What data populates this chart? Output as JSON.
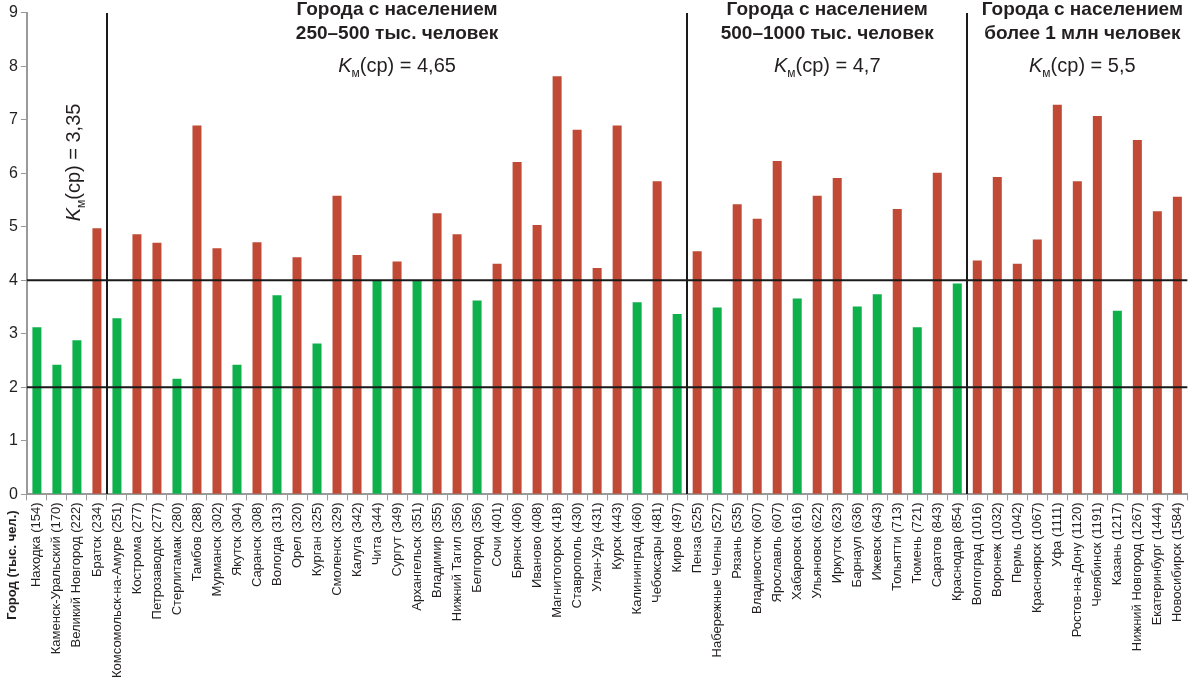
{
  "chart_data": {
    "type": "bar",
    "categories": [
      "Находка (154)",
      "Каменск-Уральский (170)",
      "Великий Новгород (222)",
      "Братск (234)",
      "Комсомольск-на-Амуре (251)",
      "Кострома (277)",
      "Петрозаводск (277)",
      "Стерлитамак (280)",
      "Тамбов (288)",
      "Мурманск (302)",
      "Якутск (304)",
      "Саранск (308)",
      "Вологда (313)",
      "Орел (320)",
      "Курган (325)",
      "Смоленск (329)",
      "Калуга (342)",
      "Чита (344)",
      "Сургут (349)",
      "Архангельск (351)",
      "Владимир (355)",
      "Нижний Тагил (356)",
      "Белгород (356)",
      "Сочи (401)",
      "Брянск (406)",
      "Иваново (408)",
      "Магнитогорск (418)",
      "Ставрополь (430)",
      "Улан-Удэ (431)",
      "Курск (443)",
      "Калининград (460)",
      "Чебоксары (481)",
      "Киров (497)",
      "Пенза (525)",
      "Набережные Челны (527)",
      "Рязань (535)",
      "Владивосток (607)",
      "Ярославль (607)",
      "Хабаровск (616)",
      "Ульяновск (622)",
      "Иркутск (623)",
      "Барнаул (636)",
      "Ижевск (643)",
      "Тольятти (713)",
      "Тюмень (721)",
      "Саратов (843)",
      "Краснодар (854)",
      "Волгоград (1016)",
      "Воронеж (1032)",
      "Пермь (1042)",
      "Красноярск (1067)",
      "Уфа (1111)",
      "Ростов-на-Дону (1120)",
      "Челябинск (1191)",
      "Казань (1217)",
      "Нижний Новгород (1267)",
      "Екатеринбург (1444)",
      "Новосибирск (1584)"
    ],
    "values": [
      3.12,
      2.42,
      2.88,
      4.97,
      3.29,
      4.86,
      4.7,
      2.16,
      6.89,
      4.6,
      2.42,
      4.71,
      3.72,
      4.43,
      2.82,
      5.58,
      4.47,
      4.0,
      4.35,
      4.0,
      5.25,
      4.86,
      3.62,
      4.31,
      6.21,
      5.03,
      7.81,
      6.81,
      4.23,
      6.89,
      3.59,
      5.85,
      3.37,
      4.54,
      3.49,
      5.42,
      5.15,
      6.23,
      3.66,
      5.58,
      5.91,
      3.51,
      3.74,
      5.33,
      3.12,
      6.01,
      3.94,
      4.37,
      5.93,
      4.31,
      4.76,
      7.28,
      5.85,
      7.07,
      3.43,
      6.62,
      5.29,
      5.56
    ],
    "colors": [
      "#0db04b",
      "#0db04b",
      "#0db04b",
      "#c04a35",
      "#0db04b",
      "#c04a35",
      "#c04a35",
      "#0db04b",
      "#c04a35",
      "#c04a35",
      "#0db04b",
      "#c04a35",
      "#0db04b",
      "#c04a35",
      "#0db04b",
      "#c04a35",
      "#c04a35",
      "#0db04b",
      "#c04a35",
      "#0db04b",
      "#c04a35",
      "#c04a35",
      "#0db04b",
      "#c04a35",
      "#c04a35",
      "#c04a35",
      "#c04a35",
      "#c04a35",
      "#c04a35",
      "#c04a35",
      "#0db04b",
      "#c04a35",
      "#0db04b",
      "#c04a35",
      "#0db04b",
      "#c04a35",
      "#c04a35",
      "#c04a35",
      "#0db04b",
      "#c04a35",
      "#c04a35",
      "#0db04b",
      "#0db04b",
      "#c04a35",
      "#0db04b",
      "#c04a35",
      "#0db04b",
      "#c04a35",
      "#c04a35",
      "#c04a35",
      "#c04a35",
      "#c04a35",
      "#c04a35",
      "#c04a35",
      "#0db04b",
      "#c04a35",
      "#c04a35",
      "#c04a35"
    ],
    "ylim": [
      0,
      9
    ],
    "yticks": [
      0,
      1,
      2,
      3,
      4,
      5,
      6,
      7,
      8,
      9
    ],
    "grid": false,
    "legend": false,
    "ref_lines": [
      {
        "axis": "y",
        "value": 2,
        "color": "#1a1a1a"
      },
      {
        "axis": "y",
        "value": 4,
        "color": "#1a1a1a"
      }
    ],
    "annotations": [
      "K$_{м}$(ср) = 3,35",
      "Города с населением\n250–500 тыс. человек",
      "K$_{м}$(ср) = 4,65",
      "Города с населением\n500–1000 тыс. человек",
      "K$_{м}$(ср) = 4,7",
      "Города с населением\nболее 1 млн человек",
      "K$_{м}$(ср) = 5,5",
      "Город (тыс. чел.)"
    ]
  }
}
